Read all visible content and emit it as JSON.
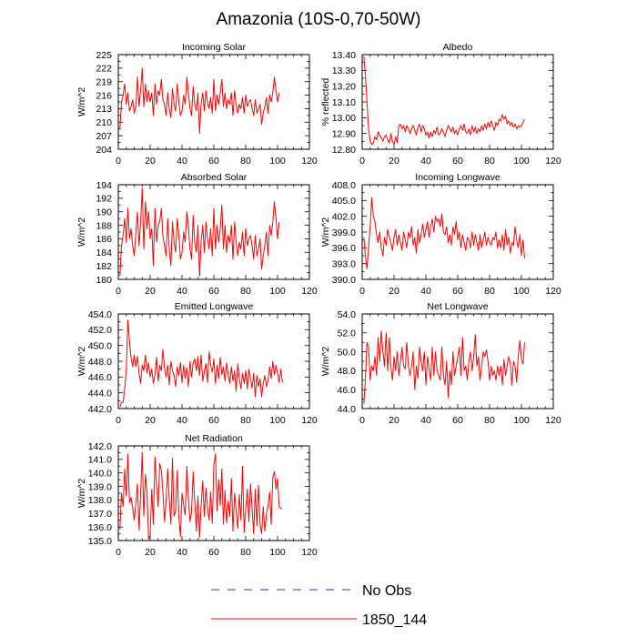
{
  "figure_title": "Amazonia (10S-0,70-50W)",
  "legend": {
    "items": [
      {
        "label": "No Obs",
        "style": "dashed",
        "color": "#3333aa"
      },
      {
        "label": "1850_144",
        "style": "solid",
        "color": "#ff0000"
      }
    ]
  },
  "series_color": "#ff0000",
  "chart_data": [
    {
      "type": "line",
      "title": "Incoming Solar",
      "ylabel": "W/m^2",
      "xlabel": "",
      "xlim": [
        0,
        120
      ],
      "ylim": [
        204,
        225
      ],
      "xticks": [
        0,
        20,
        40,
        60,
        80,
        100,
        120
      ],
      "yticks": [
        "204",
        "207",
        "210",
        "213",
        "216",
        "219",
        "222",
        "225"
      ],
      "series": [
        {
          "name": "1850_144",
          "x0": 1,
          "values": [
            208.5,
            214.5,
            216,
            218.5,
            214,
            216.5,
            212.5,
            213.5,
            215,
            212,
            213.5,
            220,
            213.5,
            217,
            222,
            213.5,
            218.5,
            214.5,
            217,
            214.5,
            216.5,
            211.5,
            218.5,
            214,
            217,
            216,
            219.5,
            215,
            214,
            211.5,
            216.5,
            213,
            211,
            217.5,
            214,
            212.5,
            218.5,
            214.5,
            211.5,
            212.5,
            216,
            214,
            220,
            216.5,
            213,
            211.5,
            218,
            214,
            212.5,
            216.5,
            207.5,
            214,
            216.5,
            212.5,
            217,
            214.5,
            213,
            215.5,
            212,
            219.5,
            212.5,
            216,
            214,
            216.5,
            219.5,
            213.5,
            216.5,
            213,
            215,
            214,
            216.5,
            211.5,
            217,
            214,
            212,
            214,
            213,
            215.5,
            212,
            216,
            213.5,
            214.5,
            215,
            213,
            211.5,
            215,
            212,
            213,
            214,
            209.5,
            212,
            213.5,
            215.5,
            212,
            216,
            214.5,
            216.5,
            220,
            217,
            214.5,
            216.5
          ]
        }
      ]
    },
    {
      "type": "line",
      "title": "Albedo",
      "ylabel": "% reflected",
      "xlabel": "",
      "xlim": [
        0,
        120
      ],
      "ylim": [
        12.8,
        13.4
      ],
      "xticks": [
        0,
        20,
        40,
        60,
        80,
        100,
        120
      ],
      "yticks": [
        "12.80",
        "12.90",
        "13.00",
        "13.10",
        "13.20",
        "13.30",
        "13.40"
      ],
      "series": [
        {
          "name": "1850_144",
          "x0": 1,
          "values": [
            13.39,
            13.27,
            13.1,
            12.93,
            12.85,
            12.83,
            12.84,
            12.88,
            12.86,
            12.91,
            12.89,
            12.87,
            12.85,
            12.88,
            12.89,
            12.86,
            12.84,
            12.9,
            12.85,
            12.83,
            12.88,
            12.84,
            12.95,
            12.96,
            12.93,
            12.95,
            12.91,
            12.95,
            12.93,
            12.9,
            12.93,
            12.95,
            12.92,
            12.89,
            12.94,
            12.96,
            12.91,
            12.95,
            12.93,
            12.89,
            12.91,
            12.87,
            12.91,
            12.88,
            12.92,
            12.9,
            12.94,
            12.89,
            12.9,
            12.93,
            12.91,
            12.88,
            12.92,
            12.95,
            12.93,
            12.91,
            12.94,
            12.9,
            12.92,
            12.89,
            12.93,
            12.95,
            12.92,
            12.96,
            12.91,
            12.9,
            12.93,
            12.89,
            12.95,
            12.91,
            12.94,
            12.9,
            12.93,
            12.91,
            12.95,
            12.92,
            12.96,
            12.93,
            12.97,
            12.94,
            12.98,
            12.95,
            12.92,
            12.97,
            12.95,
            12.99,
            12.98,
            13.02,
            12.99,
            13.01,
            12.96,
            12.98,
            12.95,
            12.97,
            12.94,
            12.96,
            12.93,
            12.95,
            12.94,
            12.95,
            12.97,
            12.99
          ]
        }
      ]
    },
    {
      "type": "line",
      "title": "Absorbed Solar",
      "ylabel": "W/m^2",
      "xlabel": "",
      "xlim": [
        0,
        120
      ],
      "ylim": [
        180,
        194
      ],
      "xticks": [
        0,
        20,
        40,
        60,
        80,
        100,
        120
      ],
      "yticks": [
        "180",
        "182",
        "184",
        "186",
        "188",
        "190",
        "192",
        "194"
      ],
      "series": [
        {
          "name": "1850_144",
          "x0": 1,
          "values": [
            180.5,
            185,
            186.5,
            189,
            185.5,
            190.5,
            186,
            187.5,
            185,
            183.5,
            187,
            190,
            185,
            188.5,
            193.5,
            184.5,
            191.5,
            187.5,
            190,
            186,
            187.5,
            182,
            190.5,
            185.5,
            188,
            188.5,
            190.5,
            186.5,
            185,
            183.5,
            189,
            184.5,
            182,
            188.5,
            185.5,
            184,
            189,
            186.5,
            183,
            184,
            187,
            185.5,
            190,
            188,
            184.5,
            183,
            189.5,
            185.5,
            184,
            188,
            180.5,
            185.5,
            188,
            184,
            188.5,
            186,
            184.5,
            187.5,
            183.5,
            190.5,
            184.5,
            188,
            185.5,
            187.5,
            191,
            184.5,
            188,
            184,
            186.5,
            185.5,
            188,
            183,
            188.5,
            185.5,
            183.5,
            185.5,
            184.5,
            187,
            183.5,
            187.5,
            185,
            186,
            186.5,
            185,
            183,
            186.5,
            183.5,
            184.5,
            186,
            181.5,
            183.5,
            185,
            187,
            183.5,
            188,
            186.5,
            188.5,
            191.5,
            189,
            186,
            188.5
          ]
        }
      ]
    },
    {
      "type": "line",
      "title": "Incoming Longwave",
      "ylabel": "W/m^2",
      "xlabel": "",
      "xlim": [
        0,
        120
      ],
      "ylim": [
        390,
        408
      ],
      "xticks": [
        0,
        20,
        40,
        60,
        80,
        100,
        120
      ],
      "yticks": [
        "390.0",
        "393.0",
        "396.0",
        "399.0",
        "402.0",
        "405.0",
        "408.0"
      ],
      "series": [
        {
          "name": "1850_144",
          "x0": 1,
          "values": [
            398,
            394.5,
            392,
            396,
            400,
            405.5,
            402,
            401,
            398.5,
            397,
            399,
            396,
            394.5,
            398,
            396.5,
            399.5,
            398,
            397,
            395.5,
            398,
            399.5,
            396.5,
            398.5,
            397,
            395.5,
            399,
            397.5,
            396,
            399,
            398,
            400,
            396.5,
            398,
            395,
            399.5,
            397,
            398.5,
            400.5,
            398,
            399.5,
            401,
            398,
            400,
            401.5,
            399,
            402,
            401,
            401.5,
            400,
            402.5,
            399,
            398.5,
            400,
            397,
            398.5,
            396.5,
            400,
            398.5,
            401,
            397.5,
            399,
            396,
            398.5,
            397,
            395.5,
            398,
            397.5,
            396,
            399,
            396.5,
            398.5,
            397,
            395.5,
            398.5,
            396,
            397.5,
            399,
            396.5,
            398,
            397,
            396.5,
            398,
            397.5,
            399,
            396,
            397.5,
            396,
            398.5,
            395.5,
            399.5,
            396.5,
            398,
            395,
            397,
            396.5,
            400,
            397.5,
            396,
            398.5,
            394.5,
            397.5,
            394
          ]
        }
      ]
    },
    {
      "type": "line",
      "title": "Emitted Longwave",
      "ylabel": "W/m^2",
      "xlabel": "",
      "xlim": [
        0,
        120
      ],
      "ylim": [
        442,
        454
      ],
      "xticks": [
        0,
        20,
        40,
        60,
        80,
        100,
        120
      ],
      "yticks": [
        "442.0",
        "444.0",
        "446.0",
        "448.0",
        "450.0",
        "452.0",
        "454.0"
      ],
      "series": [
        {
          "name": "1850_144",
          "x0": 1,
          "values": [
            442.2,
            442.8,
            442.8,
            444.5,
            447,
            453.2,
            450.5,
            448.5,
            447.3,
            448.8,
            447.3,
            448.6,
            446.5,
            445.2,
            447.5,
            446.8,
            448.8,
            446.5,
            447.8,
            446,
            447,
            445.2,
            446.3,
            448.5,
            445.5,
            447.5,
            446.8,
            449.5,
            447.2,
            446,
            447.5,
            445,
            448,
            446.8,
            446.2,
            444.8,
            447.3,
            446.2,
            447.8,
            445.3,
            447.5,
            445.8,
            447.2,
            444.8,
            448,
            446,
            447.8,
            448.3,
            446.8,
            448.6,
            446.2,
            448.8,
            445.5,
            446.6,
            447.7,
            445.3,
            449.2,
            447.5,
            446.6,
            448.3,
            445.2,
            447.5,
            445.8,
            448.5,
            446.3,
            447.3,
            445.5,
            447.8,
            446.3,
            445.2,
            447.3,
            445.5,
            446.8,
            444.2,
            447.7,
            445.8,
            444.5,
            446.5,
            445.2,
            446.8,
            444.5,
            447,
            445.8,
            444.6,
            446.5,
            443.5,
            446.2,
            444.8,
            445.8,
            443.5,
            445.2,
            446.2,
            444.8,
            445.5,
            447.3,
            445.8,
            448,
            446.3,
            447.5,
            446.5,
            445.3,
            447,
            445.3
          ]
        }
      ]
    },
    {
      "type": "line",
      "title": "Net Longwave",
      "ylabel": "W/m^2",
      "xlabel": "",
      "xlim": [
        0,
        120
      ],
      "ylim": [
        44,
        54
      ],
      "xticks": [
        0,
        20,
        40,
        60,
        80,
        100,
        120
      ],
      "yticks": [
        "44.0",
        "46.0",
        "48.0",
        "50.0",
        "52.0",
        "54.0"
      ],
      "series": [
        {
          "name": "1850_144",
          "x0": 1,
          "values": [
            44.5,
            47,
            51,
            50.5,
            47,
            48.5,
            48,
            49.5,
            47.5,
            51.5,
            49,
            52.2,
            50,
            48.5,
            52,
            48,
            51.5,
            48.5,
            47,
            49.5,
            48,
            50,
            47.5,
            49,
            50.5,
            48.5,
            48.2,
            51,
            48.5,
            47.5,
            48.5,
            50,
            46,
            48.5,
            47.2,
            50.5,
            49,
            48,
            50,
            46.5,
            49.5,
            48.2,
            47,
            50.5,
            47.5,
            50,
            48,
            47.5,
            47,
            50.5,
            47.5,
            46.5,
            49,
            45.2,
            48,
            46.5,
            50,
            47.5,
            48.5,
            49.5,
            50.5,
            47.5,
            51.5,
            48,
            48.5,
            47,
            49,
            50,
            48,
            49.5,
            51.8,
            48.5,
            49.5,
            47,
            48.5,
            50,
            49.5,
            50.2,
            49,
            47,
            48.5,
            47.5,
            48,
            47,
            48.5,
            47.5,
            48.5,
            46.5,
            49.2,
            47.5,
            48.5,
            49.5,
            48.8,
            46.5,
            49,
            48.5,
            46.8,
            49.5,
            51.2,
            49.2,
            48.7,
            51
          ]
        }
      ]
    },
    {
      "type": "line",
      "title": "Net Radiation",
      "ylabel": "W/m^2",
      "xlabel": "",
      "xlim": [
        0,
        120
      ],
      "ylim": [
        135,
        142
      ],
      "xticks": [
        0,
        20,
        40,
        60,
        80,
        100,
        120
      ],
      "yticks": [
        "135.0",
        "136.0",
        "137.0",
        "138.0",
        "139.0",
        "140.0",
        "141.0",
        "142.0"
      ],
      "series": [
        {
          "name": "1850_144",
          "x0": 1,
          "values": [
            135.8,
            138.5,
            137.5,
            140.3,
            138.3,
            141.4,
            137.8,
            138.2,
            137.4,
            136.5,
            137.8,
            139.2,
            135.8,
            138.4,
            141.5,
            136.8,
            139.9,
            138.6,
            135.1,
            135.4,
            138.8,
            136.2,
            141.2,
            139.1,
            137.5,
            140.7,
            140.2,
            138.6,
            136.4,
            137.9,
            140.3,
            138.1,
            136.2,
            141.1,
            136.8,
            137.2,
            140.2,
            136.8,
            135.3,
            138.5,
            137.6,
            136.9,
            140.5,
            138.2,
            136.4,
            137.1,
            140.1,
            137.9,
            135.7,
            138.3,
            135.2,
            137.6,
            139.4,
            136.8,
            138.9,
            137.4,
            136.5,
            138.6,
            136.3,
            140.6,
            141.4,
            137.2,
            139.5,
            137.6,
            140.3,
            136.2,
            138.7,
            136.3,
            137.9,
            136.8,
            139.6,
            135.7,
            138.5,
            137.2,
            135.9,
            138.4,
            136.5,
            140.5,
            135.6,
            137.3,
            138.8,
            136.4,
            139.2,
            137.4,
            135.5,
            138.8,
            136.1,
            139.1,
            136.2,
            135.5,
            137.5,
            135.7,
            136.9,
            137.6,
            138.6,
            136.2,
            139.7,
            140.1,
            138.8,
            139.6,
            137.5,
            137.4,
            137.3
          ]
        }
      ]
    }
  ]
}
